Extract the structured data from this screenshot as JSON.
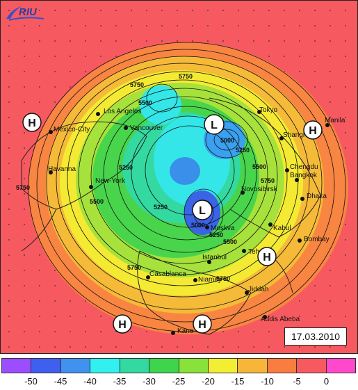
{
  "brand": {
    "logo_text": "RIU"
  },
  "date": "17.03.2010",
  "pressure_systems": [
    {
      "letter": "H",
      "kind": "high"
    },
    {
      "letter": "L",
      "kind": "low"
    },
    {
      "letter": "H",
      "kind": "high"
    },
    {
      "letter": "L",
      "kind": "low"
    },
    {
      "letter": "H",
      "kind": "high"
    },
    {
      "letter": "H",
      "kind": "high"
    },
    {
      "letter": "H",
      "kind": "high"
    }
  ],
  "cities": [
    "Mexico-City",
    "Los Angeles",
    "Vancouver",
    "Tokyo",
    "Manila",
    "Shanghai",
    "Chengdu",
    "Bangkok",
    "Dhaka",
    "Novosibirsk",
    "Kabul",
    "Bombay",
    "Moskva",
    "Tehran",
    "Istanbul",
    "Jiddah",
    "Addis Abeba",
    "Casablanca",
    "Niamey",
    "Kano",
    "Havanna",
    "New-York"
  ],
  "contour_labels": [
    "5750",
    "5750",
    "5500",
    "5250",
    "5000",
    "5250",
    "5500",
    "5750",
    "5500",
    "5250",
    "5000",
    "5250",
    "5500",
    "5750",
    "5750",
    "5750"
  ],
  "colors": {
    "background": "#f65a60",
    "scale": [
      "#9b4dff",
      "#3f5ff0",
      "#3f92f0",
      "#31f0f0",
      "#32d9a0",
      "#3ed44c",
      "#88e23a",
      "#f2ef32",
      "#f7b53a",
      "#f87d3e",
      "#f65a60",
      "#ff48cc"
    ]
  },
  "colorbar": {
    "ticks": [
      "-50",
      "-45",
      "-40",
      "-35",
      "-30",
      "-25",
      "-20",
      "-15",
      "-10",
      "-5",
      "0"
    ]
  }
}
